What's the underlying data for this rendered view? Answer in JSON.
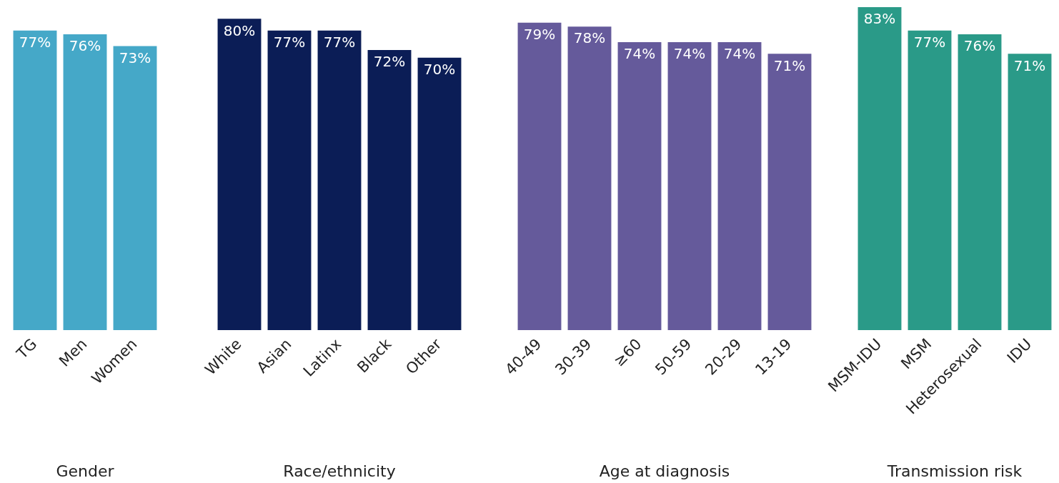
{
  "chart_data": [
    {
      "type": "bar",
      "xlabel": "Gender",
      "categories": [
        "TG",
        "Men",
        "Women"
      ],
      "values": [
        77,
        76,
        73
      ],
      "value_labels": [
        "77%",
        "76%",
        "73%"
      ],
      "color": "#45a8c8",
      "tick_labels": "x"
    },
    {
      "type": "bar",
      "xlabel": "Race/ethnicity",
      "categories": [
        "White",
        "Asian",
        "Latinx",
        "Black",
        "Other"
      ],
      "values": [
        80,
        77,
        77,
        72,
        70
      ],
      "value_labels": [
        "80%",
        "77%",
        "77%",
        "72%",
        "70%"
      ],
      "color": "#0b1d56",
      "tick_labels": "x"
    },
    {
      "type": "bar",
      "xlabel": "Age at diagnosis",
      "categories": [
        "40-49",
        "30-39",
        "≥60",
        "50-59",
        "20-29",
        "13-19"
      ],
      "values": [
        79,
        78,
        74,
        74,
        74,
        71
      ],
      "value_labels": [
        "79%",
        "78%",
        "74%",
        "74%",
        "74%",
        "71%"
      ],
      "color": "#655a9b",
      "tick_labels": "x"
    },
    {
      "type": "bar",
      "xlabel": "Transmission risk",
      "categories": [
        "MSM-IDU",
        "MSM",
        "Heterosexual",
        "IDU"
      ],
      "values": [
        83,
        77,
        76,
        71
      ],
      "value_labels": [
        "83%",
        "77%",
        "76%",
        "71%"
      ],
      "color": "#2a9a88",
      "tick_labels": "x"
    }
  ]
}
